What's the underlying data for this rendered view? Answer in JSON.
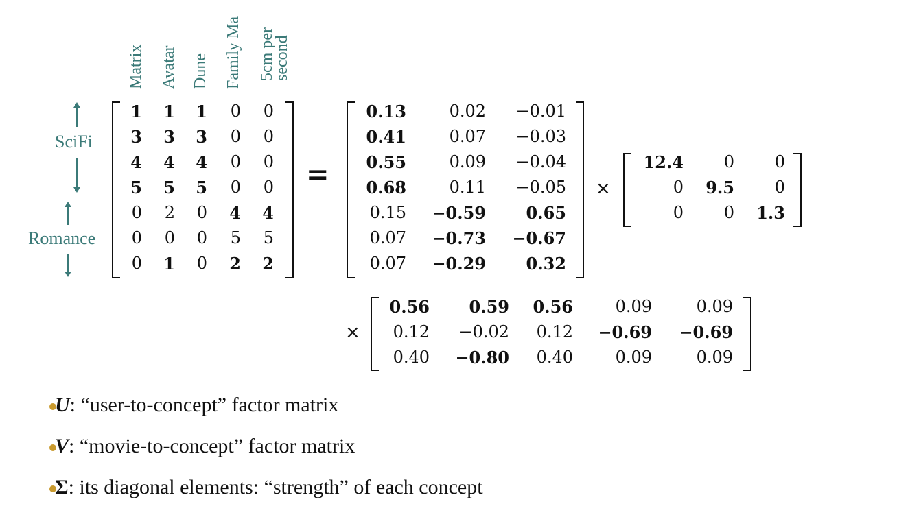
{
  "column_headers": [
    {
      "lines": [
        "Matrix"
      ]
    },
    {
      "lines": [
        "Avatar"
      ]
    },
    {
      "lines": [
        "Dune"
      ]
    },
    {
      "lines": [
        "Family Ma"
      ]
    },
    {
      "lines": [
        "5cm per",
        "second"
      ]
    }
  ],
  "row_groups": {
    "scifi": "SciFi",
    "romance": "Romance"
  },
  "equals": "=",
  "times": "×",
  "A": [
    [
      [
        "1",
        1
      ],
      [
        "1",
        1
      ],
      [
        "1",
        1
      ],
      [
        "0",
        0
      ],
      [
        "0",
        0
      ]
    ],
    [
      [
        "3",
        1
      ],
      [
        "3",
        1
      ],
      [
        "3",
        1
      ],
      [
        "0",
        0
      ],
      [
        "0",
        0
      ]
    ],
    [
      [
        "4",
        1
      ],
      [
        "4",
        1
      ],
      [
        "4",
        1
      ],
      [
        "0",
        0
      ],
      [
        "0",
        0
      ]
    ],
    [
      [
        "5",
        1
      ],
      [
        "5",
        1
      ],
      [
        "5",
        1
      ],
      [
        "0",
        0
      ],
      [
        "0",
        0
      ]
    ],
    [
      [
        "0",
        0
      ],
      [
        "2",
        0
      ],
      [
        "0",
        0
      ],
      [
        "4",
        1
      ],
      [
        "4",
        1
      ]
    ],
    [
      [
        "0",
        0
      ],
      [
        "0",
        0
      ],
      [
        "0",
        0
      ],
      [
        "5",
        0
      ],
      [
        "5",
        0
      ]
    ],
    [
      [
        "0",
        0
      ],
      [
        "1",
        1
      ],
      [
        "0",
        0
      ],
      [
        "2",
        1
      ],
      [
        "2",
        1
      ]
    ]
  ],
  "U": [
    [
      [
        "0.13",
        1
      ],
      [
        "0.02",
        0
      ],
      [
        "−0.01",
        0
      ]
    ],
    [
      [
        "0.41",
        1
      ],
      [
        "0.07",
        0
      ],
      [
        "−0.03",
        0
      ]
    ],
    [
      [
        "0.55",
        1
      ],
      [
        "0.09",
        0
      ],
      [
        "−0.04",
        0
      ]
    ],
    [
      [
        "0.68",
        1
      ],
      [
        "0.11",
        0
      ],
      [
        "−0.05",
        0
      ]
    ],
    [
      [
        "0.15",
        0
      ],
      [
        "−0.59",
        1
      ],
      [
        "0.65",
        1
      ]
    ],
    [
      [
        "0.07",
        0
      ],
      [
        "−0.73",
        1
      ],
      [
        "−0.67",
        1
      ]
    ],
    [
      [
        "0.07",
        0
      ],
      [
        "−0.29",
        1
      ],
      [
        "0.32",
        1
      ]
    ]
  ],
  "S": [
    [
      [
        "12.4",
        1
      ],
      [
        "0",
        0
      ],
      [
        "0",
        0
      ]
    ],
    [
      [
        "0",
        0
      ],
      [
        "9.5",
        1
      ],
      [
        "0",
        0
      ]
    ],
    [
      [
        "0",
        0
      ],
      [
        "0",
        0
      ],
      [
        "1.3",
        1
      ]
    ]
  ],
  "VT": [
    [
      [
        "0.56",
        1
      ],
      [
        "0.59",
        1
      ],
      [
        "0.56",
        1
      ],
      [
        "0.09",
        0
      ],
      [
        "0.09",
        0
      ]
    ],
    [
      [
        "0.12",
        0
      ],
      [
        "−0.02",
        0
      ],
      [
        "0.12",
        0
      ],
      [
        "−0.69",
        1
      ],
      [
        "−0.69",
        1
      ]
    ],
    [
      [
        "0.40",
        0
      ],
      [
        "−0.80",
        1
      ],
      [
        "0.40",
        0
      ],
      [
        "0.09",
        0
      ],
      [
        "0.09",
        0
      ]
    ]
  ],
  "bullets": [
    {
      "symbol": "U",
      "text": ": “user-to-concept” factor matrix"
    },
    {
      "symbol": "V",
      "text": ": “movie-to-concept” factor matrix"
    },
    {
      "symbol": "Σ",
      "text": ": its diagonal elements: “strength” of each concept"
    }
  ],
  "colors": {
    "accent": "#3b7a78",
    "bullet": "#c99a2e"
  }
}
